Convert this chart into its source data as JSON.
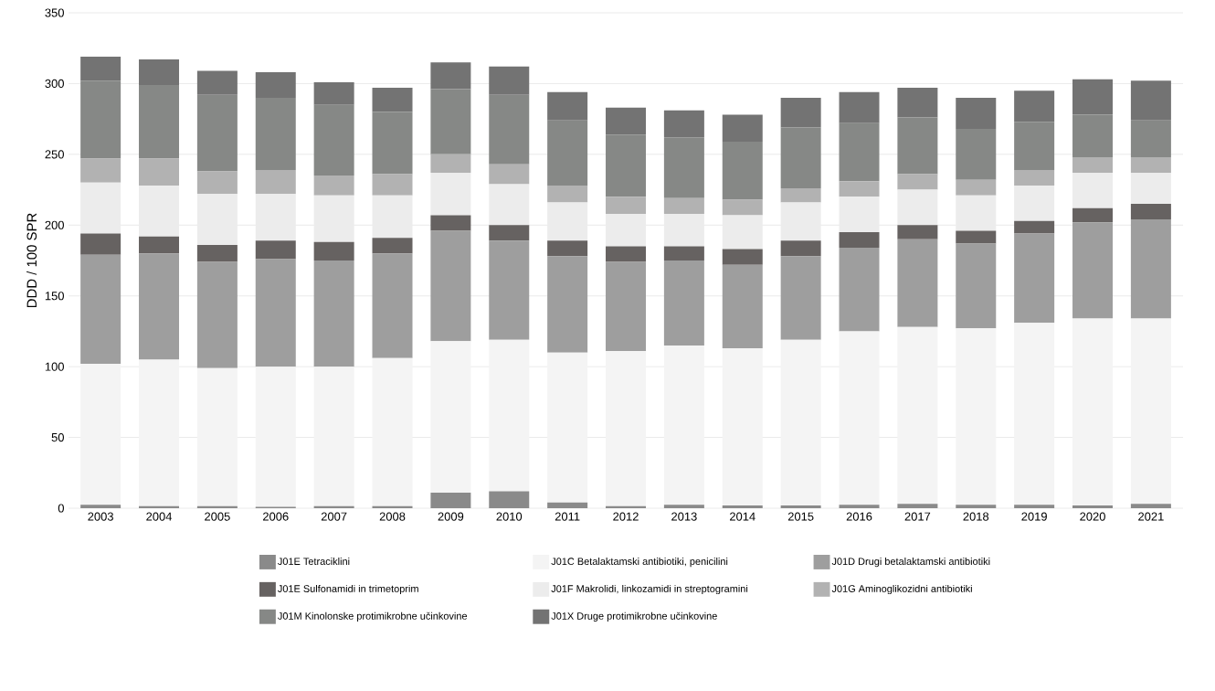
{
  "chart_data": {
    "type": "bar",
    "stacked": true,
    "ylabel": "DDD / 100 SPR",
    "categories": [
      "2003",
      "2004",
      "2005",
      "2006",
      "2007",
      "2008",
      "2009",
      "2010",
      "2011",
      "2012",
      "2013",
      "2014",
      "2015",
      "2016",
      "2017",
      "2018",
      "2019",
      "2020",
      "2021"
    ],
    "ylim": [
      0,
      350
    ],
    "yticks": [
      0,
      50,
      100,
      150,
      200,
      250,
      300,
      350
    ],
    "grid": "y",
    "legend": "bottom",
    "series": [
      {
        "name": "J01E Tetraciklini",
        "color": "#8a8a8a",
        "values": [
          2.5,
          1.5,
          1.5,
          1,
          1.5,
          1.5,
          11,
          12,
          4,
          1.5,
          2.5,
          2,
          2,
          2.5,
          3,
          2.5,
          2.5,
          2,
          3
        ]
      },
      {
        "name": "J01C Betalaktamski antibiotiki, penicilini",
        "color": "#f4f4f4",
        "values": [
          99.5,
          103.5,
          97.5,
          99,
          98.5,
          104.5,
          107,
          107,
          106,
          109.5,
          112.5,
          111,
          117,
          122.5,
          125,
          124.5,
          128.5,
          132,
          131
        ]
      },
      {
        "name": "J01D Drugi betalaktamski antibiotiki",
        "color": "#9e9e9e",
        "values": [
          77,
          75,
          75,
          76,
          75,
          74,
          78,
          70,
          68,
          63,
          60,
          59,
          59,
          59,
          62,
          60,
          63,
          68,
          70
        ]
      },
      {
        "name": "J01E Sulfonamidi in trimetoprim",
        "color": "#666261",
        "values": [
          15,
          12,
          12,
          13,
          13,
          11,
          11,
          11,
          11,
          11,
          10,
          11,
          11,
          11,
          10,
          9,
          9,
          10,
          11
        ]
      },
      {
        "name": "J01F Makrolidi, linkozamidi in streptogramini",
        "color": "#ececec",
        "values": [
          36,
          36,
          36,
          33,
          33,
          30,
          30,
          29,
          27,
          23,
          23,
          24,
          27,
          25,
          25,
          25,
          25,
          25,
          22
        ]
      },
      {
        "name": "J01G Aminoglikozidni antibiotiki",
        "color": "#b2b2b2",
        "values": [
          17,
          19,
          16,
          17,
          14,
          15,
          13,
          14,
          12,
          12,
          11,
          11,
          10,
          11,
          11,
          11,
          11,
          11,
          11
        ]
      },
      {
        "name": "J01M Kinolonske protimikrobne učinkovine",
        "color": "#868886",
        "values": [
          55,
          52,
          54,
          51,
          50,
          44,
          46,
          49,
          46,
          44,
          43,
          41,
          43,
          41,
          40,
          36,
          34,
          30,
          26
        ]
      },
      {
        "name": "J01X Druge protimikrobne učinkovine",
        "color": "#737373",
        "values": [
          17,
          18,
          17,
          18,
          16,
          17,
          19,
          20,
          20,
          19,
          19,
          19,
          21,
          22,
          21,
          22,
          22,
          25,
          28
        ]
      }
    ]
  }
}
